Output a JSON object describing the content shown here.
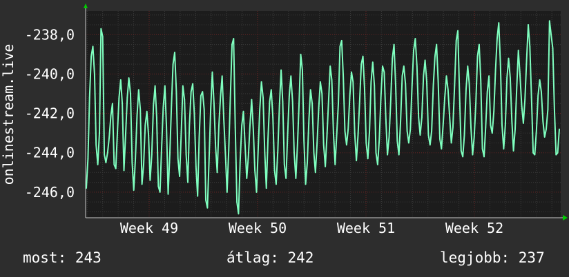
{
  "chart_data": {
    "type": "line",
    "title": "",
    "ylabel": "onlinestream.live",
    "xlabel": "",
    "x_ticks": [
      "Week 49",
      "Week 50",
      "Week 51",
      "Week 52"
    ],
    "y_ticks": [
      "-238,0",
      "-240,0",
      "-242,0",
      "-244,0",
      "-246,0"
    ],
    "ylim": [
      -247.3,
      -236.8
    ],
    "grid": true,
    "colors": {
      "background": "#2d2d2d",
      "plot_background": "#1c1c1c",
      "line": "#7fffbf",
      "major_grid": "#6a2424",
      "minor_grid": "#3a3a3a",
      "axis_arrow": "#00cc00"
    },
    "series": [
      {
        "values": [
          -245.8,
          -244.3,
          -241.2,
          -239.1,
          -238.6,
          -240.0,
          -243.6,
          -244.6,
          -243.0,
          -237.7,
          -238.1,
          -244.1,
          -244.5,
          -244.0,
          -243.2,
          -242.1,
          -241.5,
          -244.6,
          -244.8,
          -243.0,
          -241.2,
          -240.3,
          -241.5,
          -244.9,
          -243.1,
          -241.2,
          -240.2,
          -241.0,
          -244.5,
          -245.9,
          -244.3,
          -242.1,
          -240.8,
          -241.8,
          -245.6,
          -244.6,
          -242.6,
          -241.9,
          -243.1,
          -245.4,
          -244.1,
          -241.6,
          -240.6,
          -242.2,
          -245.7,
          -246.0,
          -243.8,
          -241.7,
          -240.6,
          -242.7,
          -246.1,
          -244.1,
          -241.6,
          -239.5,
          -238.9,
          -240.9,
          -244.3,
          -245.2,
          -243.0,
          -240.6,
          -241.3,
          -244.1,
          -245.5,
          -242.6,
          -240.9,
          -240.5,
          -242.0,
          -244.7,
          -246.2,
          -243.2,
          -241.1,
          -240.9,
          -241.8,
          -246.4,
          -246.8,
          -244.3,
          -241.8,
          -239.9,
          -241.5,
          -243.7,
          -245.0,
          -242.6,
          -241.1,
          -240.1,
          -242.3,
          -244.1,
          -246.0,
          -243.9,
          -241.2,
          -238.5,
          -238.2,
          -242.7,
          -246.5,
          -247.1,
          -244.4,
          -242.6,
          -241.9,
          -243.6,
          -245.3,
          -244.2,
          -242.6,
          -241.3,
          -242.8,
          -244.9,
          -246.0,
          -243.8,
          -241.8,
          -240.4,
          -241.2,
          -244.0,
          -245.8,
          -243.3,
          -241.4,
          -240.8,
          -242.2,
          -244.9,
          -245.6,
          -243.9,
          -241.6,
          -239.8,
          -241.4,
          -244.6,
          -245.3,
          -243.1,
          -241.1,
          -240.1,
          -241.4,
          -244.0,
          -245.3,
          -243.6,
          -241.5,
          -239.0,
          -239.8,
          -243.4,
          -245.6,
          -244.5,
          -242.3,
          -240.8,
          -241.5,
          -244.0,
          -245.0,
          -243.5,
          -241.7,
          -240.4,
          -241.0,
          -243.6,
          -244.7,
          -243.2,
          -241.4,
          -239.6,
          -240.3,
          -243.0,
          -244.6,
          -243.1,
          -241.5,
          -238.6,
          -238.3,
          -240.1,
          -242.9,
          -243.6,
          -242.8,
          -241.1,
          -239.9,
          -240.4,
          -243.0,
          -244.4,
          -243.1,
          -241.4,
          -239.5,
          -239.1,
          -240.7,
          -243.5,
          -244.3,
          -242.9,
          -240.4,
          -239.4,
          -240.6,
          -244.0,
          -244.6,
          -243.3,
          -241.2,
          -239.6,
          -239.9,
          -242.3,
          -244.1,
          -243.2,
          -241.3,
          -239.2,
          -238.5,
          -240.6,
          -243.4,
          -244.1,
          -242.4,
          -240.1,
          -239.6,
          -240.5,
          -242.9,
          -243.5,
          -242.8,
          -240.6,
          -238.8,
          -238.2,
          -239.6,
          -242.2,
          -243.1,
          -242.2,
          -240.1,
          -239.3,
          -240.4,
          -243.1,
          -243.6,
          -242.9,
          -240.6,
          -239.1,
          -238.5,
          -240.4,
          -243.3,
          -243.8,
          -242.6,
          -241.2,
          -240.1,
          -240.8,
          -242.2,
          -243.5,
          -242.7,
          -240.6,
          -238.3,
          -237.8,
          -240.9,
          -243.9,
          -244.2,
          -243.1,
          -240.8,
          -239.6,
          -240.5,
          -242.7,
          -244.1,
          -243.2,
          -241.5,
          -239.1,
          -238.5,
          -240.3,
          -243.8,
          -244.2,
          -242.7,
          -240.9,
          -240.1,
          -242.6,
          -243.0,
          -241.9,
          -239.8,
          -238.2,
          -237.4,
          -239.5,
          -242.6,
          -243.8,
          -242.6,
          -240.2,
          -239.2,
          -240.2,
          -242.4,
          -243.9,
          -242.8,
          -240.6,
          -238.8,
          -240.1,
          -241.6,
          -242.5,
          -241.3,
          -239.3,
          -237.5,
          -238.6,
          -241.2,
          -244.0,
          -244.1,
          -242.9,
          -241.1,
          -240.3,
          -240.9,
          -242.4,
          -243.2,
          -242.8,
          -241.8,
          -237.3,
          -238.0,
          -238.7,
          -241.8,
          -244.1,
          -244.0,
          -242.8
        ]
      }
    ]
  },
  "stats": {
    "current": "most: 243",
    "average": "átlag: 242",
    "best": "legjobb: 237"
  }
}
